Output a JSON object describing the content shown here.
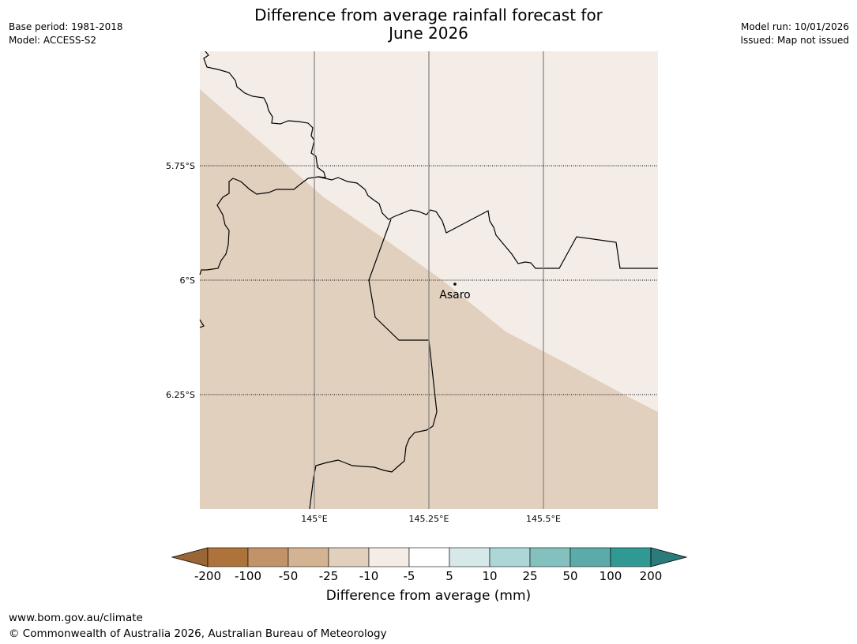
{
  "title_line1": "Difference from average rainfall forecast for",
  "title_line2": "June 2026",
  "meta_left": {
    "base_period": "Base period: 1981-2018",
    "model": "Model: ACCESS-S2"
  },
  "meta_right": {
    "model_run": "Model run: 10/01/2026",
    "issued": "Issued: Map not issued"
  },
  "map": {
    "lat_labels": [
      "5.75°S",
      "6°S",
      "6.25°S"
    ],
    "lon_labels": [
      "145°E",
      "145.25°E",
      "145.5°E"
    ],
    "place": "Asaro",
    "colors": {
      "minus10_to_minus5": "#f4ede7",
      "minus25_to_minus10": "#e2d0bf"
    }
  },
  "colorbar": {
    "title": "Difference from average (mm)",
    "ticks": [
      "-200",
      "-100",
      "-50",
      "-25",
      "-10",
      "-5",
      "5",
      "10",
      "25",
      "50",
      "100",
      "200"
    ],
    "colors": [
      "#ad733b",
      "#c29368",
      "#d4b393",
      "#e2d0bf",
      "#f4ede7",
      "#ffffff",
      "#d6e8e8",
      "#add6d6",
      "#84c1be",
      "#5aaba9",
      "#319994"
    ],
    "under_color": "#9b6636",
    "over_color": "#2a7c7a"
  },
  "footer": {
    "url": "www.bom.gov.au/climate",
    "copyright": "© Commonwealth of Australia 2026, Australian Bureau of Meteorology"
  }
}
